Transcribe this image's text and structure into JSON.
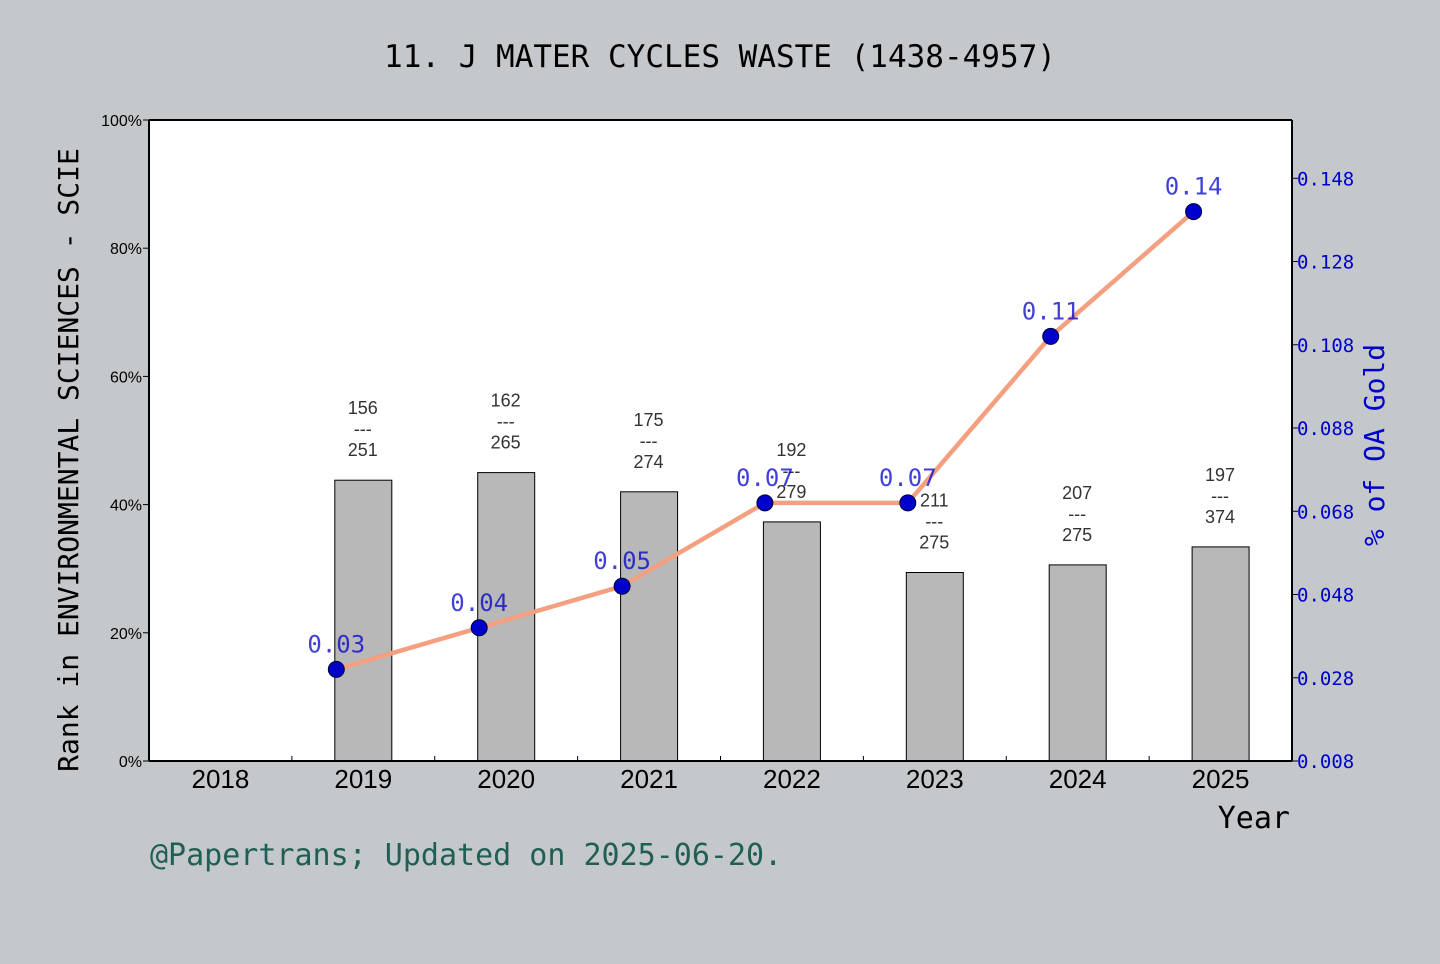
{
  "colors": {
    "background": "#c4c8cb",
    "plot_background": "#ffffff",
    "bar_fill": "#b8b8b8",
    "line": "#f4a080",
    "marker": "#0000cc",
    "right_axis": "#0000cc",
    "footer": "#1f5f55"
  },
  "footer": "@Papertrans; Updated on 2025-06-20.",
  "chart_data": {
    "type": "bar",
    "title": "11. J MATER CYCLES WASTE (1438-4957)",
    "xlabel": "Year",
    "ylabel": "Rank in ENVIRONMENTAL SCIENCES - SCIE",
    "y2label": "% of OA Gold",
    "categories": [
      "2018",
      "2019",
      "2020",
      "2021",
      "2022",
      "2023",
      "2024",
      "2025"
    ],
    "ylim": [
      0,
      100
    ],
    "yticks": [
      "0%",
      "20%",
      "40%",
      "60%",
      "80%",
      "100%"
    ],
    "y2lim": [
      0.008,
      0.162
    ],
    "y2ticks": [
      "0.008",
      "0.028",
      "0.048",
      "0.068",
      "0.088",
      "0.108",
      "0.128",
      "0.148"
    ],
    "grid": false,
    "series": [
      {
        "type": "bar",
        "axis": "left",
        "values": [
          null,
          43.8,
          45.0,
          42.0,
          37.3,
          29.4,
          30.6,
          33.4
        ],
        "rank_labels": [
          null,
          {
            "rank": "156",
            "sep": "---",
            "total": "251"
          },
          {
            "rank": "162",
            "sep": "---",
            "total": "265"
          },
          {
            "rank": "175",
            "sep": "---",
            "total": "274"
          },
          {
            "rank": "192",
            "sep": "---",
            "total": "279"
          },
          {
            "rank": "211",
            "sep": "---",
            "total": "275"
          },
          {
            "rank": "207",
            "sep": "---",
            "total": "275"
          },
          {
            "rank": "197",
            "sep": "---",
            "total": "374"
          }
        ]
      },
      {
        "type": "line",
        "axis": "right",
        "values": [
          null,
          0.03,
          0.04,
          0.05,
          0.07,
          0.07,
          0.11,
          0.14
        ],
        "labels": [
          null,
          "0.03",
          "0.04",
          "0.05",
          "0.07",
          "0.07",
          "0.11",
          "0.14"
        ]
      }
    ]
  }
}
